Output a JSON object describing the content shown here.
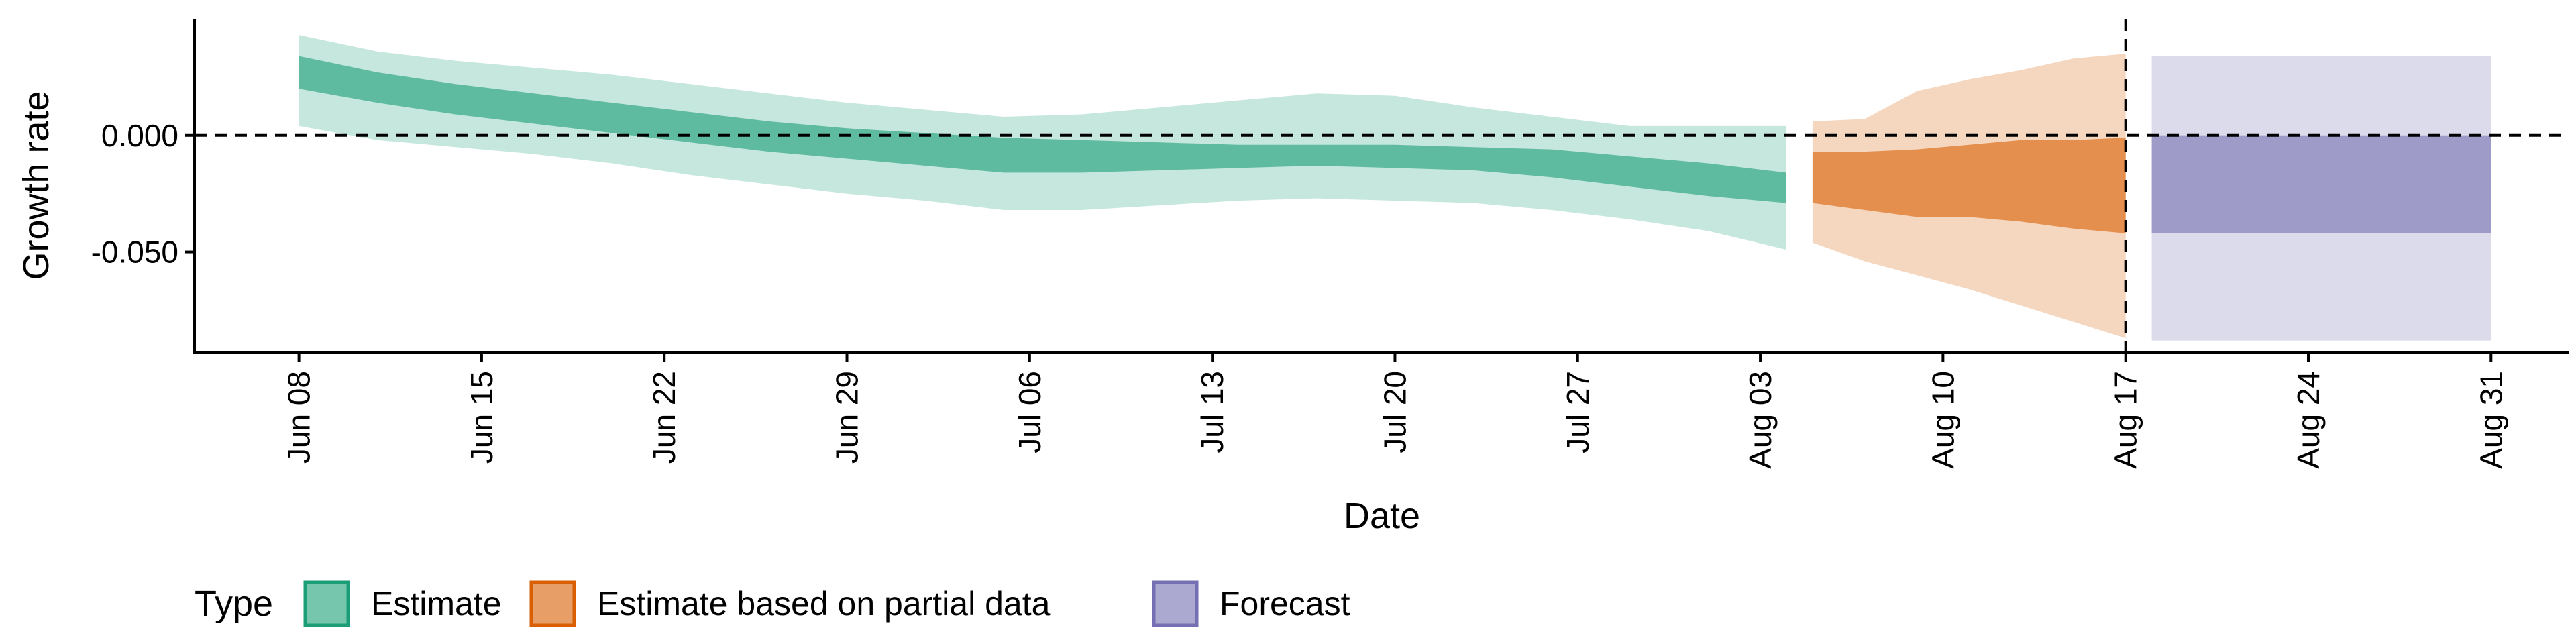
{
  "chart_data": {
    "type": "area",
    "title": "",
    "xlabel": "Date",
    "ylabel": "Growth rate",
    "x_ticks": [
      "Jun 08",
      "Jun 15",
      "Jun 22",
      "Jun 29",
      "Jul 06",
      "Jul 13",
      "Jul 20",
      "Jul 27",
      "Aug 03",
      "Aug 10",
      "Aug 17",
      "Aug 24",
      "Aug 31"
    ],
    "y_ticks": [
      "0.000",
      "-0.050"
    ],
    "y_tick_values": [
      0.0,
      -0.05
    ],
    "xlim": [
      "2020-06-04",
      "2020-09-03"
    ],
    "ylim": [
      -0.093,
      0.05
    ],
    "zero_line": 0.0,
    "vline_date": "2020-08-17",
    "grid": false,
    "legend": {
      "position": "bottom-left",
      "title": "Type",
      "entries": [
        {
          "label": "Estimate",
          "color": "#1b9e77"
        },
        {
          "label": "Estimate based on partial data",
          "color": "#d95f02"
        },
        {
          "label": "Forecast",
          "color": "#7570b3"
        }
      ]
    },
    "series": [
      {
        "name": "Estimate",
        "color": "#1b9e77",
        "dates": [
          "2020-06-08",
          "2020-06-11",
          "2020-06-14",
          "2020-06-17",
          "2020-06-20",
          "2020-06-23",
          "2020-06-26",
          "2020-06-29",
          "2020-07-02",
          "2020-07-05",
          "2020-07-08",
          "2020-07-11",
          "2020-07-14",
          "2020-07-17",
          "2020-07-20",
          "2020-07-23",
          "2020-07-26",
          "2020-07-29",
          "2020-08-01",
          "2020-08-04"
        ],
        "inner_upper": [
          0.034,
          0.027,
          0.022,
          0.018,
          0.014,
          0.01,
          0.006,
          0.003,
          0.001,
          -0.001,
          -0.002,
          -0.003,
          -0.004,
          -0.004,
          -0.004,
          -0.005,
          -0.006,
          -0.009,
          -0.012,
          -0.016
        ],
        "inner_lower": [
          0.02,
          0.014,
          0.009,
          0.005,
          0.001,
          -0.003,
          -0.007,
          -0.01,
          -0.013,
          -0.016,
          -0.016,
          -0.015,
          -0.014,
          -0.013,
          -0.014,
          -0.015,
          -0.018,
          -0.022,
          -0.026,
          -0.029
        ],
        "outer_upper": [
          0.043,
          0.036,
          0.032,
          0.029,
          0.026,
          0.022,
          0.018,
          0.014,
          0.011,
          0.008,
          0.009,
          0.012,
          0.015,
          0.018,
          0.017,
          0.012,
          0.008,
          0.004,
          0.004,
          0.004
        ],
        "outer_lower": [
          0.004,
          -0.002,
          -0.005,
          -0.008,
          -0.012,
          -0.017,
          -0.021,
          -0.025,
          -0.028,
          -0.032,
          -0.032,
          -0.03,
          -0.028,
          -0.027,
          -0.028,
          -0.029,
          -0.032,
          -0.036,
          -0.041,
          -0.049
        ]
      },
      {
        "name": "Estimate based on partial data",
        "color": "#d95f02",
        "dates": [
          "2020-08-05",
          "2020-08-07",
          "2020-08-09",
          "2020-08-11",
          "2020-08-13",
          "2020-08-15",
          "2020-08-17"
        ],
        "inner_upper": [
          -0.007,
          -0.007,
          -0.006,
          -0.004,
          -0.002,
          -0.002,
          -0.001
        ],
        "inner_lower": [
          -0.029,
          -0.032,
          -0.035,
          -0.035,
          -0.037,
          -0.04,
          -0.042
        ],
        "outer_upper": [
          0.006,
          0.007,
          0.019,
          0.024,
          0.028,
          0.033,
          0.035
        ],
        "outer_lower": [
          -0.046,
          -0.054,
          -0.06,
          -0.066,
          -0.073,
          -0.08,
          -0.087
        ]
      },
      {
        "name": "Forecast",
        "color": "#7570b3",
        "dates": [
          "2020-08-18",
          "2020-08-31"
        ],
        "inner_upper": [
          0.0,
          0.0
        ],
        "inner_lower": [
          -0.042,
          -0.042
        ],
        "outer_upper": [
          0.034,
          0.034
        ],
        "outer_lower": [
          -0.088,
          -0.088
        ]
      }
    ]
  }
}
